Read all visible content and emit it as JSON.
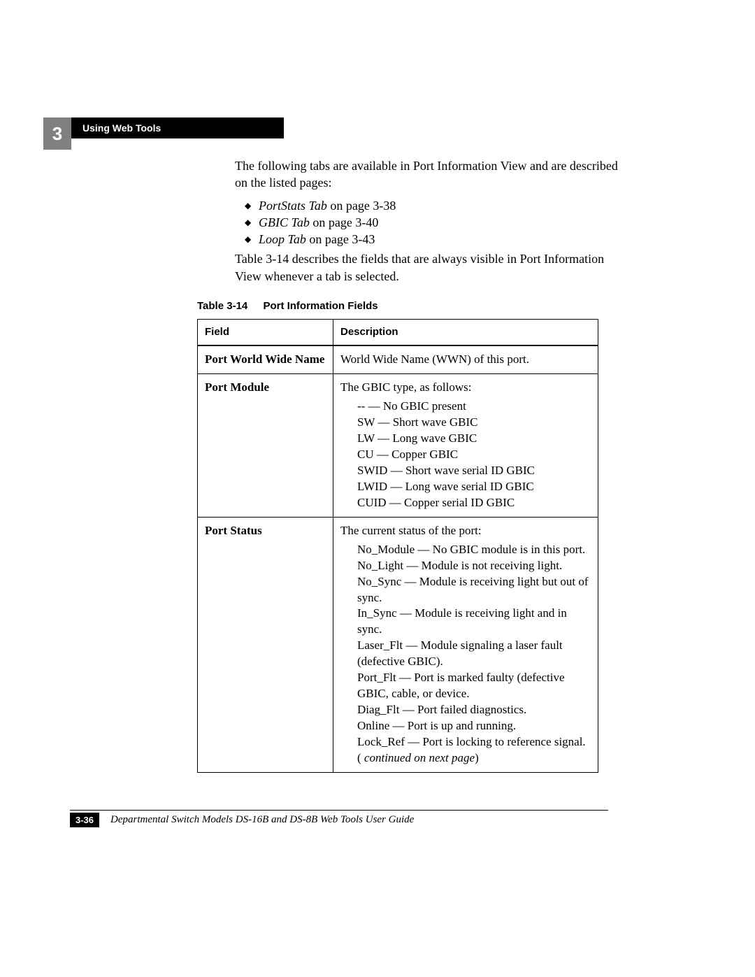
{
  "chapter": {
    "number": "3",
    "title": "Using Web Tools"
  },
  "intro": "The following tabs are available in Port Information View and are described on the listed pages:",
  "tabs": [
    {
      "name": "PortStats Tab",
      "page": " on page 3-38"
    },
    {
      "name": "GBIC Tab",
      "page": " on page 3-40"
    },
    {
      "name": "Loop Tab",
      "page": " on page 3-43"
    }
  ],
  "after_list": "Table 3-14 describes the fields that are always visible in Port Information View whenever a tab is selected.",
  "table": {
    "caption_label": "Table 3-14",
    "caption_title": "Port Information Fields",
    "headers": {
      "field": "Field",
      "description": "Description"
    },
    "rows": [
      {
        "field": "Port World Wide Name",
        "desc_intro": "World Wide Name (WWN) of this port.",
        "items": []
      },
      {
        "field": "Port Module",
        "desc_intro": "The GBIC type, as follows:",
        "items": [
          "-- — No GBIC present",
          "SW — Short wave GBIC",
          "LW — Long wave GBIC",
          "CU — Copper GBIC",
          "SWID — Short wave serial ID GBIC",
          "LWID — Long wave serial ID GBIC",
          "CUID — Copper serial ID GBIC"
        ]
      },
      {
        "field": "Port Status",
        "desc_intro": "The current status of the port:",
        "items": [
          "No_Module — No GBIC module is in this port.",
          "No_Light — Module is not receiving light.",
          "No_Sync — Module is receiving light but out of sync.",
          "In_Sync — Module is receiving light and in sync.",
          "Laser_Flt — Module signaling a laser fault (defective GBIC).",
          "Port_Flt — Port is marked faulty (defective GBIC, cable, or device.",
          "Diag_Flt — Port failed diagnostics.",
          "Online — Port is up and running."
        ],
        "tail_prefix": "Lock_Ref — Port is locking to reference signal. ( ",
        "tail_italic": "continued on next page",
        "tail_suffix": ")"
      }
    ]
  },
  "footer": {
    "page": "3-36",
    "title": "Departmental Switch Models DS-16B and DS-8B Web Tools User Guide"
  }
}
